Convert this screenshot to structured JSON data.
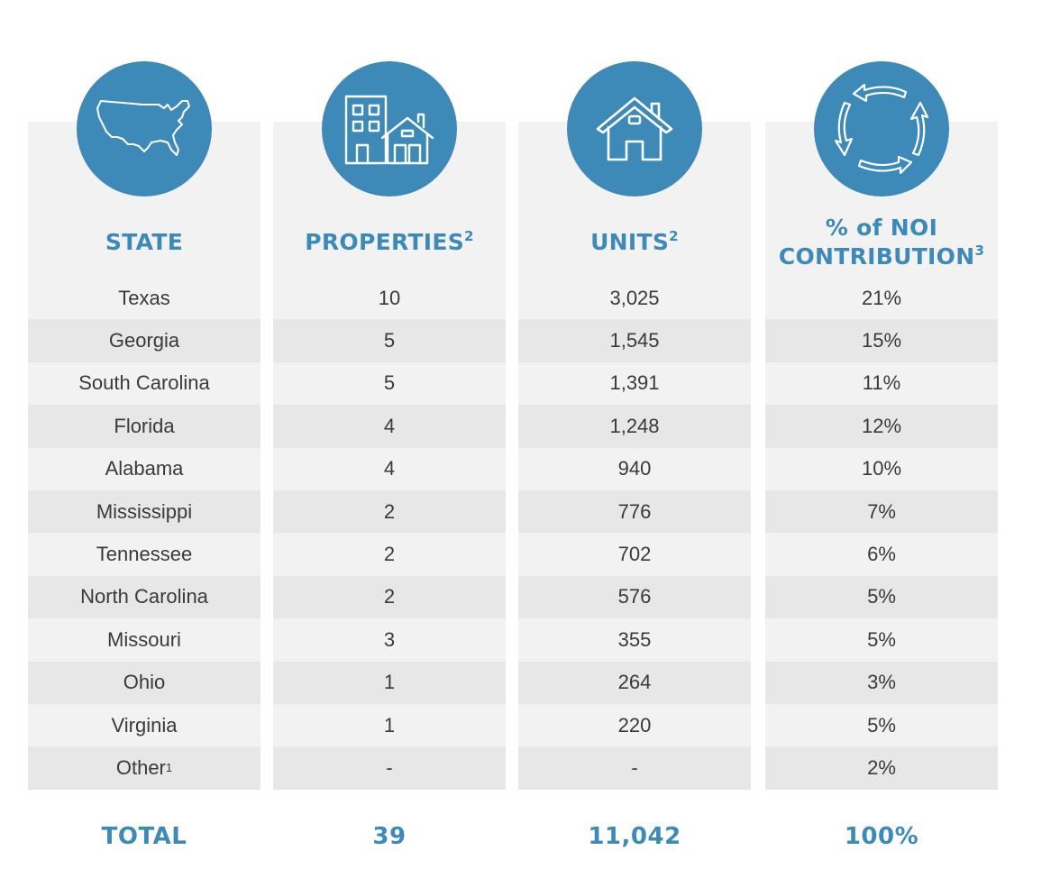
{
  "colors": {
    "accent": "#3d8ab8",
    "panel": "#f2f2f2",
    "stripe": "#e7e7e7",
    "text": "#3a3a3a"
  },
  "columns": [
    {
      "key": "state",
      "icon": "us-map-icon",
      "header": "STATE",
      "header_sup": "",
      "header_line2": "",
      "header_line2_sup": ""
    },
    {
      "key": "properties",
      "icon": "buildings-icon",
      "header": "PROPERTIES",
      "header_sup": "2",
      "header_line2": "",
      "header_line2_sup": ""
    },
    {
      "key": "units",
      "icon": "house-icon",
      "header": "UNITS",
      "header_sup": "2",
      "header_line2": "",
      "header_line2_sup": ""
    },
    {
      "key": "noi",
      "icon": "cycle-arrows-icon",
      "header": "% of NOI",
      "header_sup": "",
      "header_line2": "CONTRIBUTION",
      "header_line2_sup": "3"
    }
  ],
  "rows": [
    {
      "state": "Texas",
      "state_sup": "",
      "properties": "10",
      "units": "3,025",
      "noi": "21%"
    },
    {
      "state": "Georgia",
      "state_sup": "",
      "properties": "5",
      "units": "1,545",
      "noi": "15%"
    },
    {
      "state": "South Carolina",
      "state_sup": "",
      "properties": "5",
      "units": "1,391",
      "noi": "11%"
    },
    {
      "state": "Florida",
      "state_sup": "",
      "properties": "4",
      "units": "1,248",
      "noi": "12%"
    },
    {
      "state": "Alabama",
      "state_sup": "",
      "properties": "4",
      "units": "940",
      "noi": "10%"
    },
    {
      "state": "Mississippi",
      "state_sup": "",
      "properties": "2",
      "units": "776",
      "noi": "7%"
    },
    {
      "state": "Tennessee",
      "state_sup": "",
      "properties": "2",
      "units": "702",
      "noi": "6%"
    },
    {
      "state": "North Carolina",
      "state_sup": "",
      "properties": "2",
      "units": "576",
      "noi": "5%"
    },
    {
      "state": "Missouri",
      "state_sup": "",
      "properties": "3",
      "units": "355",
      "noi": "5%"
    },
    {
      "state": "Ohio",
      "state_sup": "",
      "properties": "1",
      "units": "264",
      "noi": "3%"
    },
    {
      "state": "Virginia",
      "state_sup": "",
      "properties": "1",
      "units": "220",
      "noi": "5%"
    },
    {
      "state": "Other",
      "state_sup": "1",
      "properties": "-",
      "units": "-",
      "noi": "2%"
    }
  ],
  "totals": {
    "state": "TOTAL",
    "properties": "39",
    "units": "11,042",
    "noi": "100%"
  }
}
